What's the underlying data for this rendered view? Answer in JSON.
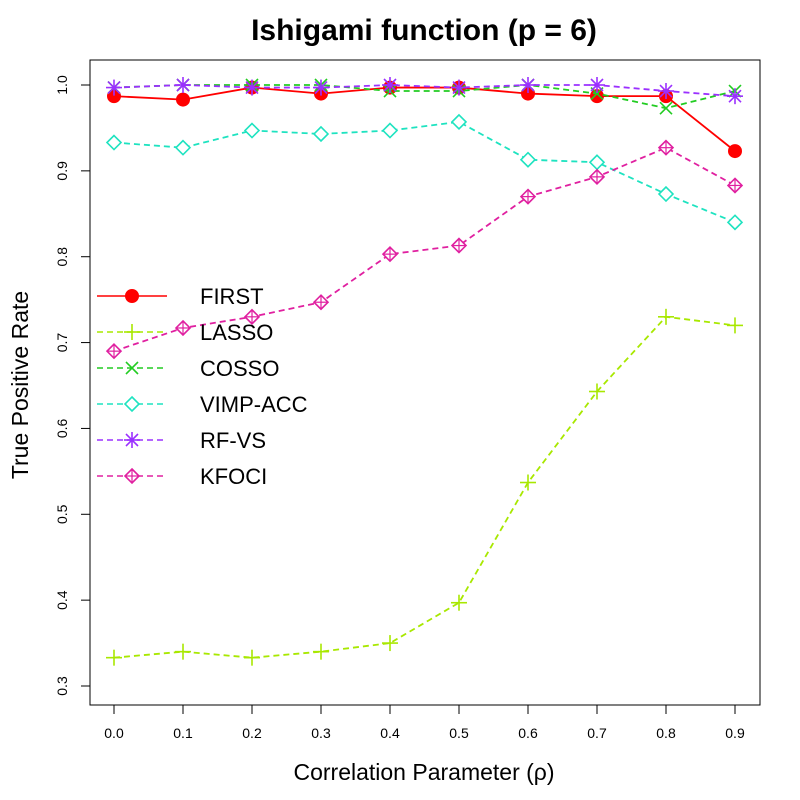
{
  "chart_data": {
    "type": "line",
    "title": "Ishigami function (p = 6)",
    "xlabel": "Correlation Parameter (ρ)",
    "ylabel": "True Positive Rate",
    "xlim": [
      0.0,
      0.9
    ],
    "ylim": [
      0.3,
      1.0
    ],
    "x_ticks": [
      "0.0",
      "0.1",
      "0.2",
      "0.3",
      "0.4",
      "0.5",
      "0.6",
      "0.7",
      "0.8",
      "0.9"
    ],
    "y_ticks": [
      "0.3",
      "0.4",
      "0.5",
      "0.6",
      "0.7",
      "0.8",
      "0.9",
      "1.0"
    ],
    "grid": false,
    "legend_position": "left",
    "x": [
      0.0,
      0.1,
      0.2,
      0.3,
      0.4,
      0.5,
      0.6,
      0.7,
      0.8,
      0.9
    ],
    "series": [
      {
        "name": "FIRST",
        "color": "#ff0000",
        "marker": "filled-circle",
        "line": "solid",
        "values": [
          0.987,
          0.983,
          0.997,
          0.99,
          0.997,
          0.997,
          0.99,
          0.987,
          0.987,
          0.923
        ]
      },
      {
        "name": "LASSO",
        "color": "#a8e800",
        "marker": "plus",
        "line": "dashed",
        "values": [
          0.333,
          0.34,
          0.333,
          0.34,
          0.35,
          0.397,
          0.537,
          0.643,
          0.73,
          0.72
        ]
      },
      {
        "name": "COSSO",
        "color": "#22cc22",
        "marker": "cross",
        "line": "dashed",
        "values": [
          0.997,
          1.0,
          1.0,
          1.0,
          0.993,
          0.993,
          1.0,
          0.99,
          0.973,
          0.993
        ]
      },
      {
        "name": "VIMP-ACC",
        "color": "#1ee3c0",
        "marker": "open-diamond",
        "line": "dashed",
        "values": [
          0.933,
          0.927,
          0.947,
          0.943,
          0.947,
          0.957,
          0.913,
          0.91,
          0.873,
          0.84
        ]
      },
      {
        "name": "RF-VS",
        "color": "#9b30ff",
        "marker": "asterisk",
        "line": "dashed",
        "values": [
          0.997,
          1.0,
          0.997,
          0.997,
          1.0,
          0.997,
          1.0,
          1.0,
          0.993,
          0.987
        ]
      },
      {
        "name": "KFOCI",
        "color": "#e020a0",
        "marker": "diamond-plus",
        "line": "dashed",
        "values": [
          0.69,
          0.717,
          0.73,
          0.747,
          0.803,
          0.813,
          0.87,
          0.893,
          0.927,
          0.883
        ]
      }
    ]
  }
}
